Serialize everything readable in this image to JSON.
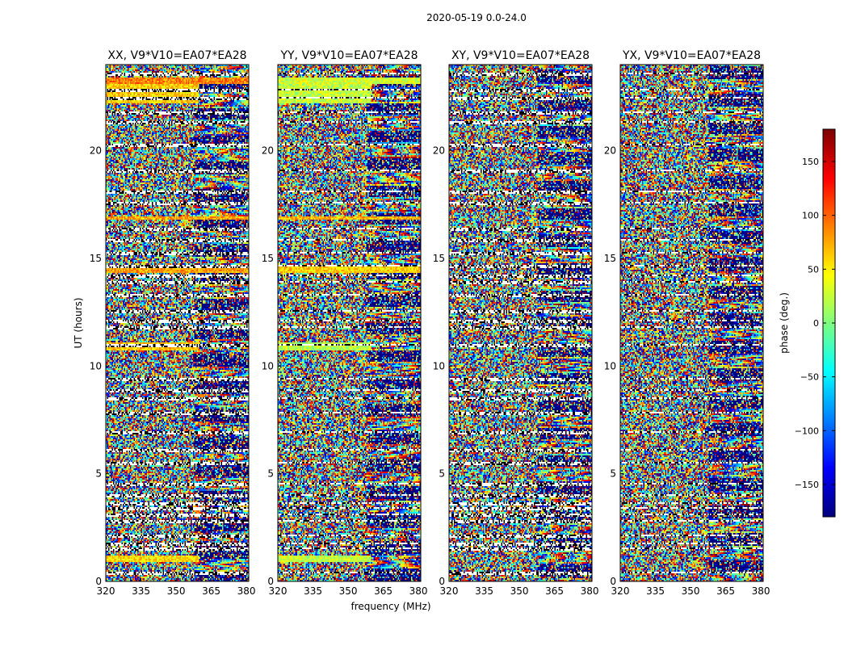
{
  "suptitle": "2020-05-19 0.0-24.0",
  "chart_data": {
    "type": "heatmap",
    "shared": {
      "xlabel": "frequency (MHz)",
      "ylabel": "UT (hours)",
      "xlim": [
        320,
        381
      ],
      "ylim": [
        0,
        24
      ],
      "xticks": [
        320,
        335,
        350,
        365,
        380
      ],
      "yticks": [
        0,
        5,
        10,
        15,
        20
      ]
    },
    "panels": [
      {
        "title": "XX, V9*V10=EA07*EA28",
        "correlation": "XX",
        "coherent_bands": [
          {
            "t": [
              0.9,
              1.2
            ],
            "f": [
              320,
              360
            ],
            "phase": 55
          },
          {
            "t": [
              10.7,
              11.1
            ],
            "f": [
              320,
              360
            ],
            "phase": 65
          },
          {
            "t": [
              14.3,
              14.6
            ],
            "f": [
              320,
              381
            ],
            "phase": 80
          },
          {
            "t": [
              16.8,
              17.0
            ],
            "f": [
              320,
              381
            ],
            "phase": 75
          },
          {
            "t": [
              22.2,
              23.1
            ],
            "f": [
              320,
              360
            ],
            "phase": 60
          },
          {
            "t": [
              23.1,
              23.4
            ],
            "f": [
              320,
              381
            ],
            "phase": 90
          }
        ]
      },
      {
        "title": "YY, V9*V10=EA07*EA28",
        "correlation": "YY",
        "coherent_bands": [
          {
            "t": [
              0.9,
              1.2
            ],
            "f": [
              320,
              360
            ],
            "phase": 25
          },
          {
            "t": [
              10.7,
              11.1
            ],
            "f": [
              320,
              360
            ],
            "phase": 20
          },
          {
            "t": [
              14.3,
              14.6
            ],
            "f": [
              320,
              381
            ],
            "phase": 60
          },
          {
            "t": [
              16.8,
              17.0
            ],
            "f": [
              320,
              381
            ],
            "phase": 70
          },
          {
            "t": [
              22.2,
              23.1
            ],
            "f": [
              320,
              360
            ],
            "phase": 25
          },
          {
            "t": [
              23.1,
              23.4
            ],
            "f": [
              320,
              381
            ],
            "phase": 30
          }
        ]
      },
      {
        "title": "XY, V9*V10=EA07*EA28",
        "correlation": "XY",
        "coherent_bands": []
      },
      {
        "title": "YX, V9*V10=EA07*EA28",
        "correlation": "YX",
        "coherent_bands": []
      }
    ],
    "flagged_rows_ut": [
      0.35,
      1.5,
      1.75,
      2.1,
      2.8,
      3.1,
      3.35,
      3.6,
      4.0,
      4.5,
      5.5,
      6.1,
      6.9,
      7.8,
      8.5,
      8.9,
      9.4,
      10.95,
      11.8,
      12.1,
      12.6,
      13.3,
      13.9,
      14.2,
      14.7,
      15.3,
      15.9,
      16.4,
      17.6,
      18.1,
      19.1,
      20.3,
      21.4,
      21.8,
      22.5,
      22.9,
      23.6
    ],
    "colorbar": {
      "label": "phase (deg.)",
      "range": [
        -180,
        180
      ],
      "ticks": [
        -150,
        -100,
        -50,
        0,
        50,
        100,
        150
      ],
      "tick_labels": [
        "−150",
        "−100",
        "−50",
        "0",
        "50",
        "100",
        "150"
      ],
      "colormap": "jet"
    }
  }
}
